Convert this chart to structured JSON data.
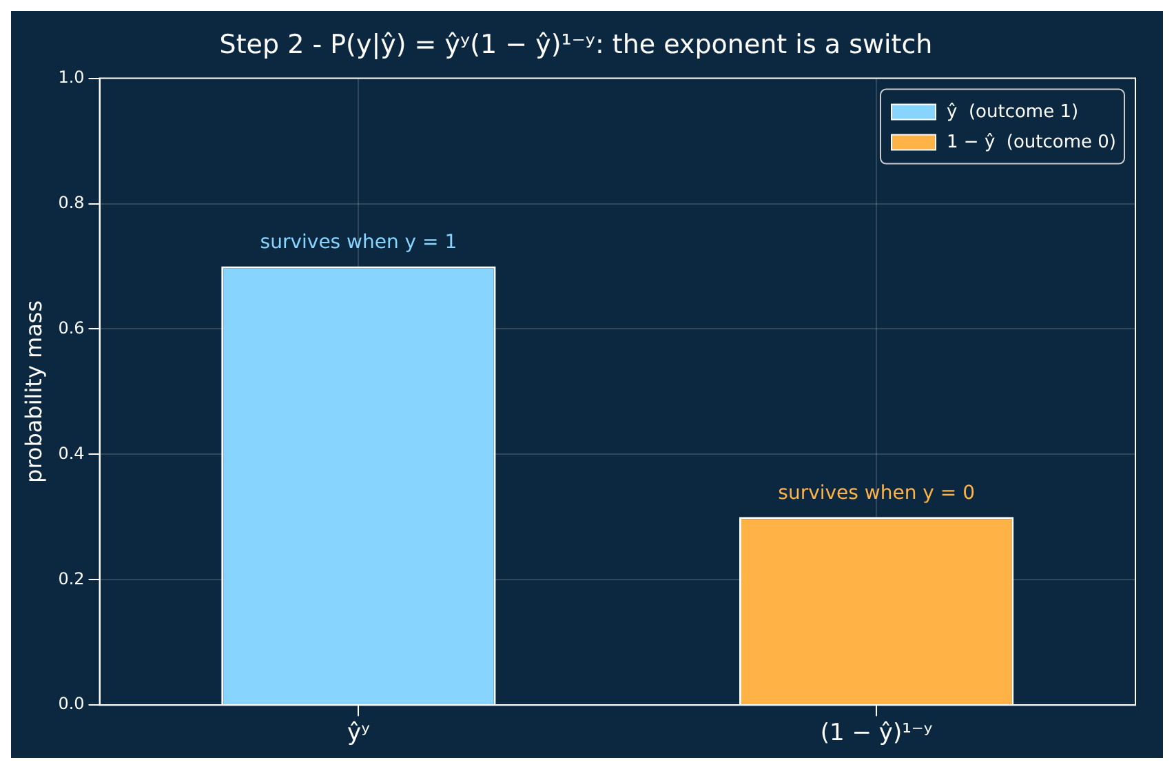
{
  "chart_data": {
    "type": "bar",
    "title": "Step 2 - P(y|ŷ) = ŷʸ(1 − ŷ)¹⁻ʸ: the exponent is a switch",
    "ylabel": "probability mass",
    "categories": [
      "ŷʸ",
      "(1 − ŷ)¹⁻ʸ"
    ],
    "series": [
      {
        "name": "ŷ  (outcome 1)",
        "color": "#87d4ff",
        "values": [
          0.7,
          null
        ]
      },
      {
        "name": "1 − ŷ  (outcome 0)",
        "color": "#ffb347",
        "values": [
          null,
          0.3
        ]
      }
    ],
    "ylim": [
      0,
      1
    ],
    "yticks": [
      {
        "value": 0,
        "label": "0.0"
      },
      {
        "value": 0.2,
        "label": "0.2"
      },
      {
        "value": 0.4,
        "label": "0.4"
      },
      {
        "value": 0.6,
        "label": "0.6"
      },
      {
        "value": 0.8,
        "label": "0.8"
      },
      {
        "value": 1,
        "label": "1.0"
      }
    ],
    "annotations": [
      {
        "text": "survives when y = 1",
        "x": "ŷʸ",
        "y": 0.7
      },
      {
        "text": "survives when y = 0",
        "x": "(1 − ŷ)¹⁻ʸ",
        "y": 0.3
      }
    ],
    "grid": true,
    "legend": "top right"
  }
}
